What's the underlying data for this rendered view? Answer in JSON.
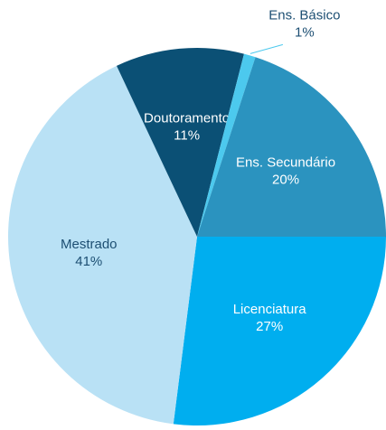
{
  "chart_data": {
    "type": "pie",
    "categories": [
      "Licenciatura",
      "Mestrado",
      "Doutoramento",
      "Ens. Básico",
      "Ens. Secundário"
    ],
    "values": [
      27,
      41,
      11,
      1,
      20
    ],
    "value_labels": [
      "27%",
      "41%",
      "11%",
      "1%",
      "20%"
    ],
    "colors": [
      "#00aeef",
      "#b9e1f5",
      "#0b5075",
      "#4cc9ee",
      "#2b93bf"
    ]
  }
}
